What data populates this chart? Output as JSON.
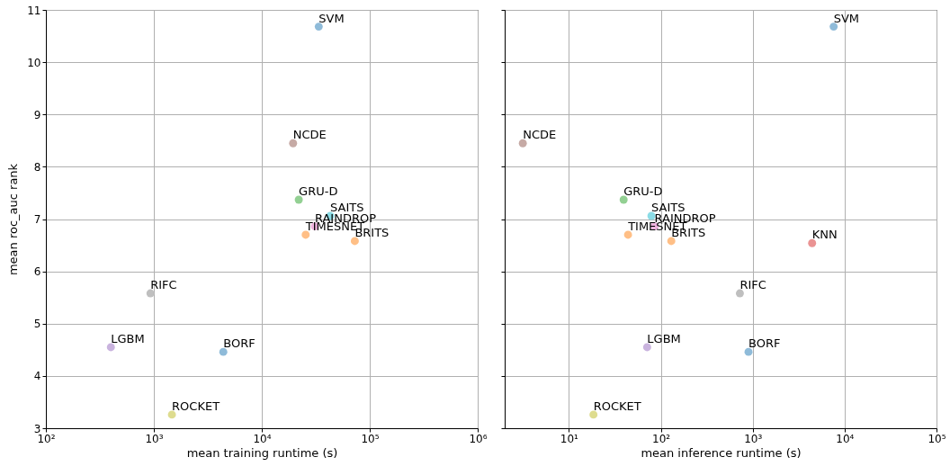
{
  "chart_data": [
    {
      "type": "scatter",
      "xlabel": "mean training runtime (s)",
      "ylabel": "mean roc_auc rank",
      "log": "x",
      "grid": true,
      "marker": "circle",
      "legend": false,
      "xlim": [
        100,
        1000000
      ],
      "ylim": [
        3,
        11
      ],
      "xticks": [
        {
          "value": 100,
          "label": "10²"
        },
        {
          "value": 1000,
          "label": "10³"
        },
        {
          "value": 10000,
          "label": "10⁴"
        },
        {
          "value": 100000,
          "label": "10⁵"
        },
        {
          "value": 1000000,
          "label": "10⁶"
        }
      ],
      "yticks": [
        3,
        4,
        5,
        6,
        7,
        8,
        9,
        10,
        11
      ],
      "series": [
        {
          "name": "SVM",
          "color": "#8fbbd9",
          "x": [
            33700
          ],
          "values": [
            10.68
          ]
        },
        {
          "name": "NCDE",
          "color": "#c6aaa5",
          "x": [
            19500
          ],
          "values": [
            8.45
          ]
        },
        {
          "name": "GRU-D",
          "color": "#93d093",
          "x": [
            22000
          ],
          "values": [
            7.37
          ]
        },
        {
          "name": "SAITS",
          "color": "#8bdce6",
          "x": [
            43000
          ],
          "values": [
            7.06
          ]
        },
        {
          "name": "RAINDROP",
          "color": "#eeb3de",
          "x": [
            31000
          ],
          "values": [
            6.86
          ]
        },
        {
          "name": "TIMESNET",
          "color": "#ffbf86",
          "x": [
            25500
          ],
          "values": [
            6.7
          ]
        },
        {
          "name": "BRITS",
          "color": "#ffbf86",
          "x": [
            72700
          ],
          "values": [
            6.58
          ]
        },
        {
          "name": "RIFC",
          "color": "#bfbfbf",
          "x": [
            930
          ],
          "values": [
            5.58
          ]
        },
        {
          "name": "LGBM",
          "color": "#c9b3de",
          "x": [
            400
          ],
          "values": [
            4.55
          ]
        },
        {
          "name": "BORF",
          "color": "#8fbbd9",
          "x": [
            4400
          ],
          "values": [
            4.46
          ]
        },
        {
          "name": "ROCKET",
          "color": "#dedc8f",
          "x": [
            1470
          ],
          "values": [
            3.26
          ]
        }
      ]
    },
    {
      "type": "scatter",
      "xlabel": "mean inference runtime (s)",
      "log": "x",
      "grid": true,
      "marker": "circle",
      "legend": false,
      "tick_labels": "x",
      "xlim": [
        2,
        100000
      ],
      "ylim": [
        3,
        11
      ],
      "xticks": [
        {
          "value": 10,
          "label": "10¹"
        },
        {
          "value": 100,
          "label": "10²"
        },
        {
          "value": 1000,
          "label": "10³"
        },
        {
          "value": 10000,
          "label": "10⁴"
        },
        {
          "value": 100000,
          "label": "10⁵"
        }
      ],
      "yticks": [
        3,
        4,
        5,
        6,
        7,
        8,
        9,
        10,
        11
      ],
      "series": [
        {
          "name": "SVM",
          "color": "#8fbbd9",
          "x": [
            7600
          ],
          "values": [
            10.68
          ]
        },
        {
          "name": "NCDE",
          "color": "#c6aaa5",
          "x": [
            3.15
          ],
          "values": [
            8.45
          ]
        },
        {
          "name": "GRU-D",
          "color": "#93d093",
          "x": [
            39.4
          ],
          "values": [
            7.37
          ]
        },
        {
          "name": "SAITS",
          "color": "#8bdce6",
          "x": [
            79
          ],
          "values": [
            7.06
          ]
        },
        {
          "name": "RAINDROP",
          "color": "#eeb3de",
          "x": [
            85.5
          ],
          "values": [
            6.86
          ]
        },
        {
          "name": "TIMESNET",
          "color": "#ffbf86",
          "x": [
            44
          ],
          "values": [
            6.7
          ]
        },
        {
          "name": "BRITS",
          "color": "#ffbf86",
          "x": [
            130
          ],
          "values": [
            6.58
          ]
        },
        {
          "name": "KNN",
          "color": "#ea9393",
          "x": [
            4430
          ],
          "values": [
            6.54
          ]
        },
        {
          "name": "RIFC",
          "color": "#bfbfbf",
          "x": [
            725
          ],
          "values": [
            5.58
          ]
        },
        {
          "name": "LGBM",
          "color": "#c9b3de",
          "x": [
            71
          ],
          "values": [
            4.55
          ]
        },
        {
          "name": "BORF",
          "color": "#8fbbd9",
          "x": [
            900
          ],
          "values": [
            4.46
          ]
        },
        {
          "name": "ROCKET",
          "color": "#dedc8f",
          "x": [
            18.5
          ],
          "values": [
            3.26
          ]
        }
      ]
    }
  ]
}
